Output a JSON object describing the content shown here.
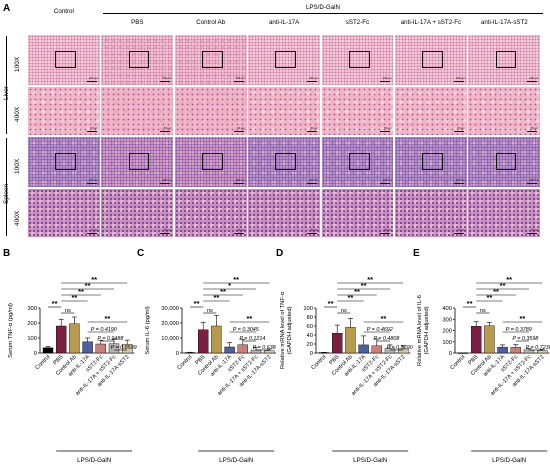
{
  "figure": {
    "panels": {
      "A": "A",
      "B": "B",
      "C": "C",
      "D": "D",
      "E": "E"
    },
    "histology": {
      "group_header": "LPS/D-GalN",
      "columns": [
        "Control",
        "PBS",
        "Control Ab",
        "anti-IL-17A",
        "sST2-Fc",
        "anti-IL-17A + sST2-Fc",
        "anti-IL-17A-sST2"
      ],
      "tissues": [
        "Liver",
        "Spleen"
      ],
      "magnifications": [
        "100X",
        "400X"
      ],
      "scalebar_100x": "200 μm",
      "scalebar_400x": "50 μm"
    }
  },
  "chart_data": [
    {
      "type": "bar",
      "panel": "B",
      "ylabel": "Serum TNF-α (pg/ml)",
      "ylim": [
        0,
        300
      ],
      "yticks": [
        "0",
        "100",
        "200",
        "300"
      ],
      "categories": [
        "Control",
        "PBS",
        "Control Ab",
        "anti-IL-17A",
        "sST2-Fc",
        "anti-IL-17A + sST2-Fc",
        "anti-IL-17A-sST2"
      ],
      "values": [
        35,
        180,
        195,
        75,
        60,
        62,
        58
      ],
      "errors": [
        8,
        45,
        45,
        25,
        25,
        30,
        28
      ],
      "colors": [
        "#000000",
        "#7b2042",
        "#b89a4f",
        "#4e5f9c",
        "#c77f78",
        "#b4b4b4",
        "#d9c6a8"
      ],
      "group_label": "LPS/D-GalN",
      "annotations": [
        "**",
        "ns",
        "**",
        "**",
        "**",
        "**",
        "**",
        "P = 0.4190",
        "P = 0.9488",
        "P = 0.8599"
      ]
    },
    {
      "type": "bar",
      "panel": "C",
      "ylabel": "Serum IL-6 (pg/ml)",
      "ylim": [
        0,
        30000
      ],
      "yticks": [
        "0",
        "10,000",
        "20,000",
        "30,000"
      ],
      "categories": [
        "Control",
        "PBS",
        "Control Ab",
        "anti-IL-17A",
        "sST2-Fc",
        "anti-IL-17A + sST2-Fc",
        "anti-IL-17A-sST2"
      ],
      "values": [
        300,
        15500,
        18000,
        4000,
        5500,
        2000,
        1500
      ],
      "errors": [
        200,
        5000,
        7000,
        3000,
        3500,
        1500,
        1200
      ],
      "colors": [
        "#000000",
        "#7b2042",
        "#b89a4f",
        "#4e5f9c",
        "#c77f78",
        "#b4b4b4",
        "#d9c6a8"
      ],
      "group_label": "LPS/D-GalN",
      "annotations": [
        "**",
        "ns",
        "**",
        "**",
        "*",
        "**",
        "**",
        "P = 0.3045",
        "P = 0.1214",
        "P = 0.6385"
      ]
    },
    {
      "type": "bar",
      "panel": "D",
      "ylabel": "Relative mRNA level of TNF-α",
      "ylabel2": "(GAPDH adjusted)",
      "ylim": [
        0,
        100
      ],
      "yticks": [
        "0",
        "20",
        "40",
        "60",
        "80",
        "100"
      ],
      "categories": [
        "Control",
        "PBS",
        "Control Ab",
        "anti-IL-17A",
        "sST2-Fc",
        "anti-IL-17A + sST2-Fc",
        "anti-IL-17A-sST2"
      ],
      "values": [
        1,
        44,
        57,
        18,
        16,
        10,
        9
      ],
      "errors": [
        0.5,
        18,
        20,
        20,
        15,
        8,
        7
      ],
      "colors": [
        "#000000",
        "#7b2042",
        "#b89a4f",
        "#4e5f9c",
        "#c77f78",
        "#b4b4b4",
        "#d9c6a8"
      ],
      "group_label": "LPS/D-GalN",
      "annotations": [
        "**",
        "ns",
        "**",
        "**",
        "**",
        "**",
        "**",
        "P = 0.4692",
        "P = 0.4808",
        "P = 0.8690"
      ]
    },
    {
      "type": "bar",
      "panel": "E",
      "ylabel": "Relative mRNA level of IL-6",
      "ylabel2": "(GAPDH adjusted)",
      "ylim": [
        0,
        400
      ],
      "yticks": [
        "0",
        "100",
        "200",
        "300",
        "400"
      ],
      "categories": [
        "Control",
        "PBS",
        "Control Ab",
        "anti-IL-17A",
        "sST2-Fc",
        "anti-IL-17A + sST2-Fc",
        "anti-IL-17A-sST2"
      ],
      "values": [
        1,
        238,
        242,
        52,
        50,
        28,
        22
      ],
      "errors": [
        0.5,
        40,
        30,
        20,
        25,
        12,
        10
      ],
      "colors": [
        "#000000",
        "#7b2042",
        "#b89a4f",
        "#4e5f9c",
        "#c77f78",
        "#b4b4b4",
        "#d9c6a8"
      ],
      "group_label": "LPS/D-GalN",
      "annotations": [
        "**",
        "ns",
        "**",
        "**",
        "**",
        "**",
        "**",
        "P = 0.3789",
        "P = 0.3598",
        "P = 0.7236"
      ]
    }
  ]
}
